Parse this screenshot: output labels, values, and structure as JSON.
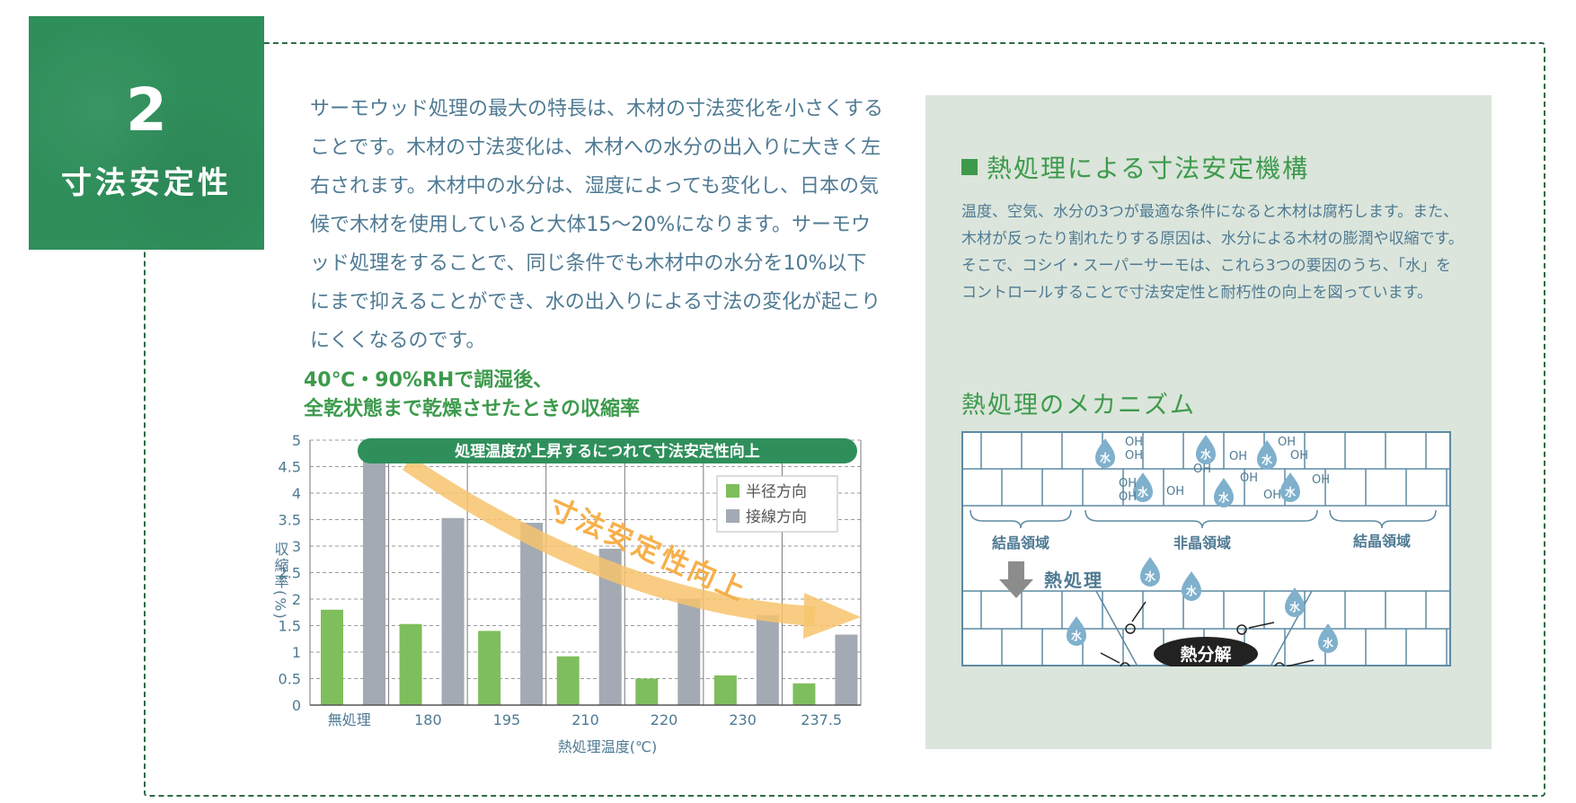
{
  "badge": {
    "number": "2",
    "title": "寸法安定性"
  },
  "intro": "サーモウッド処理の最大の特長は、木材の寸法変化を小さくすることです。木材の寸法変化は、木材への水分の出入りに大きく左右されます。木材中の水分は、湿度によっても変化し、日本の気候で木材を使用していると大体15～20%になります。サーモウッド処理をすることで、同じ条件でも木材中の水分を10%以下にまで抑えることができ、水の出入りによる寸法の変化が起こりにくくなるのです。",
  "chart_heading": {
    "line1": "40℃・90%RHで調湿後、",
    "line2": "全乾状態まで乾燥させたときの収縮率"
  },
  "chart_data": {
    "type": "bar",
    "categories": [
      "無処理",
      "180",
      "195",
      "210",
      "220",
      "230",
      "237.5"
    ],
    "series": [
      {
        "name": "半径方向",
        "values": [
          1.8,
          1.53,
          1.4,
          0.92,
          0.5,
          0.56,
          0.41
        ],
        "color": "#7fbe5c"
      },
      {
        "name": "接線方向",
        "values": [
          4.88,
          3.53,
          3.44,
          2.95,
          2.01,
          1.7,
          1.33
        ],
        "color": "#a3aab3"
      }
    ],
    "xlabel": "熱処理温度(℃)",
    "ylabel": "収縮率(%)",
    "ylim": [
      0,
      5
    ],
    "yticks": [
      "0",
      "0.5",
      "1",
      "1.5",
      "2",
      "2.5",
      "3",
      "3.5",
      "4",
      "4.5",
      "5"
    ],
    "banner": "処理温度が上昇するにつれて寸法安定性向上",
    "arrow_label": "寸法安定性向上",
    "grid": true,
    "legend_position": "top-right"
  },
  "panel": {
    "heading": "熱処理による寸法安定機構",
    "body": "温度、空気、水分の3つが最適な条件になると木材は腐朽します。また、木材が反ったり割れたりする原因は、水分による木材の膨潤や収縮です。そこで、コシイ・スーパーサーモは、これら3つの要因のうち、「水」をコントロールすることで寸法安定性と耐朽性の向上を図っています。",
    "mechanism_heading": "熱処理のメカニズム",
    "mechanism": {
      "region_left": "結晶領域",
      "region_mid": "非晶領域",
      "region_right": "結晶領域",
      "heat_label": "熱処理",
      "decomp_label": "熱分解",
      "water": "水",
      "oh": "OH",
      "o": "O",
      "colors": {
        "line": "#5d8aa3",
        "water": "#7fb0cc",
        "dark": "#222222",
        "arrow": "#8c8c8c"
      }
    }
  },
  "colors": {
    "green": "#3d9a4c",
    "badge": "#2f8f5b",
    "text": "#4f7a93",
    "panel": "#dbe5db",
    "arrow": "#f7c46d"
  }
}
